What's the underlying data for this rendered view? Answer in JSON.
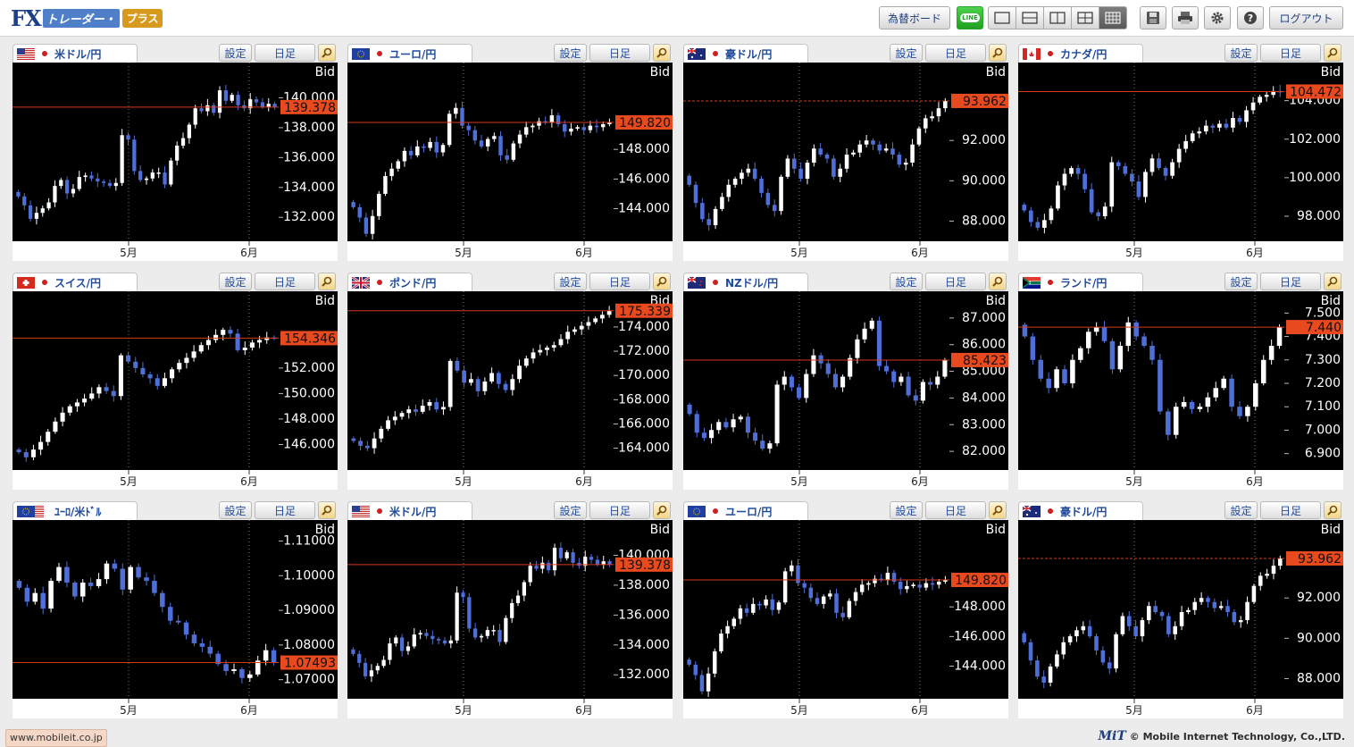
{
  "app": {
    "logo_fx": "FX",
    "logo_trader": "トレーダー・",
    "logo_plus": "プラス"
  },
  "toolbar": {
    "rate_board_label": "為替ボード",
    "line_icon_text": "LINE",
    "logout_label": "ログアウト",
    "active_layout_index": 4
  },
  "panels": [
    {
      "pair": "米ドル/円",
      "flag": "us",
      "set_label": "設定",
      "tf_label": "日足",
      "bid_label": "Bid",
      "price": "139.378",
      "price_value": 139.378,
      "dashed": false,
      "y_ticks": [
        132.0,
        134.0,
        136.0,
        138.0,
        140.0
      ],
      "y_labels": [
        "132.000",
        "134.000",
        "136.000",
        "138.000",
        "140.000"
      ],
      "y_min": 130.4,
      "y_max": 142.0,
      "month_labels": [
        "5月",
        "6月"
      ],
      "closes": [
        133.4,
        132.8,
        131.9,
        132.3,
        132.6,
        133.0,
        134.1,
        134.5,
        133.6,
        133.9,
        134.7,
        134.8,
        134.6,
        134.4,
        134.3,
        134.1,
        134.3,
        137.5,
        137.2,
        135.1,
        134.5,
        134.6,
        135.0,
        135.0,
        134.2,
        135.8,
        136.8,
        137.3,
        138.2,
        139.3,
        139.1,
        139.5,
        139.0,
        140.5,
        139.8,
        140.2,
        139.5,
        139.3,
        139.9,
        139.7,
        139.4,
        139.6,
        139.4
      ]
    },
    {
      "pair": "ユーロ/円",
      "flag": "eu",
      "set_label": "設定",
      "tf_label": "日足",
      "bid_label": "Bid",
      "price": "149.820",
      "price_value": 149.82,
      "dashed": false,
      "y_ticks": [
        144.0,
        146.0,
        148.0
      ],
      "y_labels": [
        "144.000",
        "146.000",
        "148.000"
      ],
      "y_min": 141.8,
      "y_max": 153.5,
      "month_labels": [
        "5月",
        "6月"
      ],
      "closes": [
        144.1,
        143.4,
        142.3,
        143.5,
        145.0,
        146.2,
        146.7,
        147.2,
        147.9,
        147.6,
        148.2,
        148.1,
        148.5,
        147.8,
        148.3,
        150.4,
        150.8,
        149.6,
        149.3,
        148.6,
        148.2,
        148.7,
        148.9,
        147.6,
        147.3,
        148.4,
        149.0,
        149.5,
        149.6,
        149.9,
        149.8,
        150.3,
        149.7,
        149.2,
        149.4,
        149.5,
        149.3,
        149.6,
        149.5,
        149.7,
        149.8
      ]
    },
    {
      "pair": "豪ドル/円",
      "flag": "au",
      "set_label": "設定",
      "tf_label": "日足",
      "bid_label": "Bid",
      "price": "93.962",
      "price_value": 93.962,
      "dashed": true,
      "y_ticks": [
        88.0,
        90.0,
        92.0
      ],
      "y_labels": [
        "88.000",
        "90.000",
        "92.000"
      ],
      "y_min": 87.0,
      "y_max": 95.6,
      "month_labels": [
        "5月",
        "6月"
      ],
      "closes": [
        89.8,
        88.9,
        88.1,
        87.8,
        88.6,
        89.2,
        89.8,
        90.1,
        90.4,
        90.6,
        90.1,
        89.4,
        88.8,
        88.5,
        90.2,
        91.1,
        90.6,
        90.1,
        90.9,
        91.6,
        91.3,
        91.1,
        90.2,
        90.6,
        91.3,
        91.4,
        91.8,
        92.0,
        91.8,
        91.5,
        91.6,
        91.3,
        90.8,
        90.9,
        91.8,
        92.6,
        93.1,
        93.2,
        93.6,
        93.96
      ]
    },
    {
      "pair": "カナダ/円",
      "flag": "ca",
      "set_label": "設定",
      "tf_label": "日足",
      "bid_label": "Bid",
      "price": "104.472",
      "price_value": 104.472,
      "dashed": false,
      "y_ticks": [
        98.0,
        100.0,
        102.0,
        104.0
      ],
      "y_labels": [
        "98.000",
        "100.000",
        "102.000",
        "104.000"
      ],
      "y_min": 96.7,
      "y_max": 105.7,
      "month_labels": [
        "5月",
        "6月"
      ],
      "closes": [
        98.3,
        97.7,
        97.4,
        97.8,
        98.4,
        99.6,
        100.2,
        100.5,
        100.2,
        99.4,
        98.2,
        98.0,
        98.5,
        100.8,
        100.6,
        100.2,
        99.8,
        99.0,
        100.3,
        101.0,
        100.5,
        100.1,
        100.8,
        101.5,
        101.9,
        102.3,
        102.4,
        102.7,
        102.6,
        102.8,
        102.6,
        103.1,
        102.9,
        103.5,
        103.9,
        104.2,
        104.3,
        104.5,
        104.47
      ]
    },
    {
      "pair": "スイス/円",
      "flag": "ch",
      "set_label": "設定",
      "tf_label": "日足",
      "bid_label": "Bid",
      "price": "154.346",
      "price_value": 154.346,
      "dashed": false,
      "y_ticks": [
        146.0,
        148.0,
        150.0,
        152.0
      ],
      "y_labels": [
        "146.000",
        "148.000",
        "150.000",
        "152.000"
      ],
      "y_min": 144.0,
      "y_max": 157.6,
      "month_labels": [
        "5月",
        "6月"
      ],
      "closes": [
        145.4,
        145.0,
        145.6,
        146.2,
        147.0,
        147.8,
        148.5,
        149.0,
        149.3,
        149.6,
        150.0,
        150.5,
        150.2,
        149.8,
        153.0,
        152.5,
        152.0,
        151.5,
        151.2,
        150.6,
        151.2,
        151.9,
        152.4,
        152.8,
        153.3,
        153.8,
        154.2,
        154.6,
        155.0,
        154.7,
        153.4,
        153.6,
        154.0,
        154.2,
        154.4,
        154.35
      ]
    },
    {
      "pair": "ポンド/円",
      "flag": "gb",
      "set_label": "設定",
      "tf_label": "日足",
      "bid_label": "Bid",
      "price": "175.339",
      "price_value": 175.339,
      "dashed": false,
      "y_ticks": [
        164.0,
        166.0,
        168.0,
        170.0,
        172.0,
        174.0
      ],
      "y_labels": [
        "164.000",
        "166.000",
        "168.000",
        "170.000",
        "172.000",
        "174.000"
      ],
      "y_min": 162.2,
      "y_max": 176.5,
      "month_labels": [
        "5月",
        "6月"
      ],
      "closes": [
        164.6,
        164.2,
        164.0,
        164.8,
        165.6,
        166.3,
        166.6,
        166.9,
        167.2,
        167.0,
        167.5,
        167.8,
        167.2,
        167.4,
        171.2,
        170.4,
        169.4,
        169.7,
        168.7,
        169.5,
        170.2,
        169.3,
        168.8,
        169.7,
        170.8,
        171.4,
        171.9,
        172.1,
        172.3,
        172.5,
        173.0,
        173.6,
        173.8,
        174.1,
        174.4,
        174.7,
        175.0,
        175.34
      ]
    },
    {
      "pair": "NZドル/円",
      "flag": "nz",
      "set_label": "設定",
      "tf_label": "日足",
      "bid_label": "Bid",
      "price": "85.423",
      "price_value": 85.423,
      "dashed": false,
      "y_ticks": [
        82.0,
        83.0,
        84.0,
        85.0,
        86.0,
        87.0
      ],
      "y_labels": [
        "82.000",
        "83.000",
        "84.000",
        "85.000",
        "86.000",
        "87.000"
      ],
      "y_min": 81.3,
      "y_max": 87.8,
      "month_labels": [
        "5月",
        "6月"
      ],
      "closes": [
        83.4,
        82.7,
        82.5,
        82.8,
        83.1,
        82.9,
        83.2,
        83.3,
        82.7,
        82.4,
        82.1,
        82.3,
        84.5,
        84.8,
        84.4,
        84.0,
        84.9,
        85.6,
        85.3,
        84.9,
        84.4,
        84.8,
        85.5,
        86.2,
        86.6,
        86.9,
        85.2,
        85.0,
        84.6,
        84.8,
        84.1,
        83.9,
        84.6,
        84.5,
        84.8,
        85.42
      ]
    },
    {
      "pair": "ランド/円",
      "flag": "za",
      "set_label": "設定",
      "tf_label": "日足",
      "bid_label": "Bid",
      "price": "7.440",
      "price_value": 7.44,
      "dashed": false,
      "y_ticks": [
        6.9,
        7.0,
        7.1,
        7.2,
        7.3,
        7.4,
        7.5
      ],
      "y_labels": [
        "6.900",
        "7.000",
        "7.100",
        "7.200",
        "7.300",
        "7.400",
        "7.500"
      ],
      "y_min": 6.83,
      "y_max": 7.57,
      "month_labels": [
        "5月",
        "6月"
      ],
      "closes": [
        7.4,
        7.3,
        7.22,
        7.18,
        7.26,
        7.2,
        7.3,
        7.35,
        7.42,
        7.44,
        7.38,
        7.26,
        7.36,
        7.46,
        7.4,
        7.36,
        7.3,
        7.08,
        6.98,
        7.1,
        7.12,
        7.09,
        7.1,
        7.14,
        7.18,
        7.22,
        7.1,
        7.06,
        7.1,
        7.2,
        7.3,
        7.36,
        7.44
      ]
    },
    {
      "pair": "ﾕｰﾛ/米ﾄﾞﾙ",
      "flag": "eu",
      "flag2": "us",
      "set_label": "設定",
      "tf_label": "日足",
      "bid_label": "Bid",
      "price": "1.07493",
      "price_value": 1.07493,
      "dashed": false,
      "y_ticks": [
        1.07,
        1.08,
        1.09,
        1.1,
        1.11
      ],
      "y_labels": [
        "1.07000",
        "1.08000",
        "1.09000",
        "1.10000",
        "1.11000"
      ],
      "y_min": 1.0645,
      "y_max": 1.1145,
      "month_labels": [
        "5月",
        "6月"
      ],
      "closes": [
        1.0965,
        1.0925,
        1.095,
        1.0905,
        1.0985,
        1.1025,
        1.098,
        1.094,
        1.098,
        1.097,
        1.099,
        1.1035,
        1.102,
        1.096,
        1.1025,
        1.0995,
        1.0985,
        1.095,
        1.091,
        1.087,
        1.0865,
        1.083,
        1.0805,
        1.0795,
        1.0775,
        1.0745,
        1.0725,
        1.073,
        1.0705,
        1.0715,
        1.0755,
        1.0785,
        1.0749
      ]
    },
    {
      "pair": "米ドル/円",
      "flag": "us",
      "set_label": "設定",
      "tf_label": "日足",
      "bid_label": "Bid",
      "price": "139.378",
      "price_value": 139.378,
      "dashed": false,
      "y_ticks": [
        132.0,
        134.0,
        136.0,
        138.0,
        140.0
      ],
      "y_labels": [
        "132.000",
        "134.000",
        "136.000",
        "138.000",
        "140.000"
      ],
      "y_min": 130.4,
      "y_max": 142.0,
      "month_labels": [
        "5月",
        "6月"
      ],
      "closes": [
        133.4,
        132.8,
        131.9,
        132.3,
        132.6,
        133.0,
        134.1,
        134.5,
        133.6,
        133.9,
        134.7,
        134.8,
        134.6,
        134.4,
        134.3,
        134.1,
        134.3,
        137.5,
        137.2,
        135.1,
        134.5,
        134.6,
        135.0,
        135.0,
        134.2,
        135.8,
        136.8,
        137.3,
        138.2,
        139.3,
        139.1,
        139.5,
        139.0,
        140.5,
        139.8,
        140.2,
        139.5,
        139.3,
        139.9,
        139.7,
        139.4,
        139.6,
        139.4
      ]
    },
    {
      "pair": "ユーロ/円",
      "flag": "eu",
      "set_label": "設定",
      "tf_label": "日足",
      "bid_label": "Bid",
      "price": "149.820",
      "price_value": 149.82,
      "dashed": false,
      "y_ticks": [
        144.0,
        146.0,
        148.0
      ],
      "y_labels": [
        "144.000",
        "146.000",
        "148.000"
      ],
      "y_min": 141.8,
      "y_max": 153.5,
      "month_labels": [
        "5月",
        "6月"
      ],
      "closes": [
        144.1,
        143.4,
        142.3,
        143.5,
        145.0,
        146.2,
        146.7,
        147.2,
        147.9,
        147.6,
        148.2,
        148.1,
        148.5,
        147.8,
        148.3,
        150.4,
        150.8,
        149.6,
        149.3,
        148.6,
        148.2,
        148.7,
        148.9,
        147.6,
        147.3,
        148.4,
        149.0,
        149.5,
        149.6,
        149.9,
        149.8,
        150.3,
        149.7,
        149.2,
        149.4,
        149.5,
        149.3,
        149.6,
        149.5,
        149.7,
        149.8
      ]
    },
    {
      "pair": "豪ドル/円",
      "flag": "au",
      "set_label": "設定",
      "tf_label": "日足",
      "bid_label": "Bid",
      "price": "93.962",
      "price_value": 93.962,
      "dashed": true,
      "y_ticks": [
        88.0,
        90.0,
        92.0
      ],
      "y_labels": [
        "88.000",
        "90.000",
        "92.000"
      ],
      "y_min": 87.0,
      "y_max": 95.6,
      "month_labels": [
        "5月",
        "6月"
      ],
      "closes": [
        89.8,
        88.9,
        88.1,
        87.8,
        88.6,
        89.2,
        89.8,
        90.1,
        90.4,
        90.6,
        90.1,
        89.4,
        88.8,
        88.5,
        90.2,
        91.1,
        90.6,
        90.1,
        90.9,
        91.6,
        91.3,
        91.1,
        90.2,
        90.6,
        91.3,
        91.4,
        91.8,
        92.0,
        91.8,
        91.5,
        91.6,
        91.3,
        90.8,
        90.9,
        91.8,
        92.6,
        93.1,
        93.2,
        93.6,
        93.96
      ]
    }
  ],
  "footer": {
    "url": "www.mobileit.co.jp",
    "mit_logo": "MiT",
    "copyright": "© Mobile Internet Technology, Co.,LTD."
  },
  "colors": {
    "up": "#ffffff",
    "down": "#4f6fd8",
    "price_line": "#d8391a",
    "price_box": "#e8491e",
    "chart_bg": "#000000",
    "grid": "#777777",
    "accent": "#1f4a9c"
  }
}
